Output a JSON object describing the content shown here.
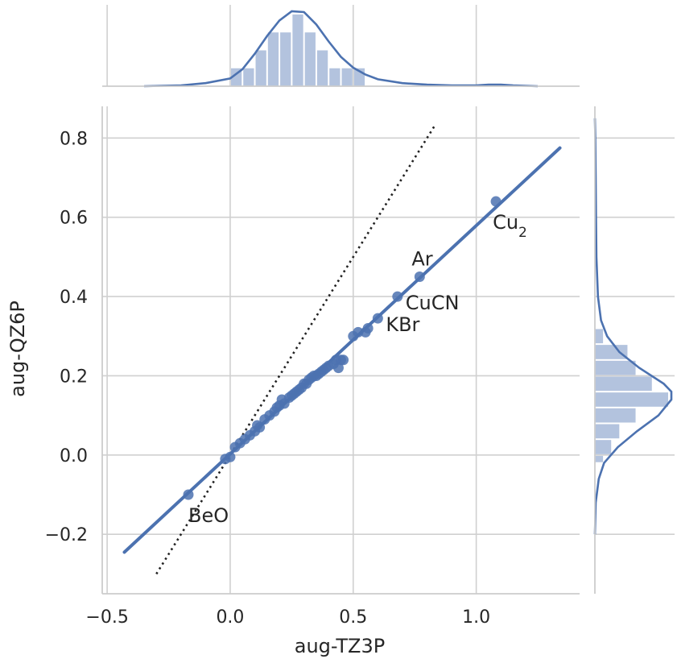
{
  "chart_data": {
    "type": "scatter",
    "title": "",
    "xlabel": "aug-TZ3P",
    "ylabel": "aug-QZ6P",
    "xlim": [
      -0.52,
      1.42
    ],
    "ylim": [
      -0.35,
      0.88
    ],
    "xticks": [
      -0.5,
      0.0,
      0.5,
      1.0
    ],
    "xtick_labels": [
      "−0.5",
      "0.0",
      "0.5",
      "1.0"
    ],
    "yticks": [
      -0.2,
      0.0,
      0.2,
      0.4,
      0.6,
      0.8
    ],
    "ytick_labels": [
      "−0.2",
      "0.0",
      "0.2",
      "0.4",
      "0.6",
      "0.8"
    ],
    "grid": true,
    "color": "#4c72b0",
    "marginal_color": "#b3c3de",
    "points": [
      {
        "x": -0.17,
        "y": -0.1
      },
      {
        "x": -0.02,
        "y": -0.01
      },
      {
        "x": 0.0,
        "y": -0.005
      },
      {
        "x": 0.02,
        "y": 0.02
      },
      {
        "x": 0.04,
        "y": 0.03
      },
      {
        "x": 0.06,
        "y": 0.04
      },
      {
        "x": 0.08,
        "y": 0.05
      },
      {
        "x": 0.1,
        "y": 0.06
      },
      {
        "x": 0.12,
        "y": 0.07
      },
      {
        "x": 0.11,
        "y": 0.075
      },
      {
        "x": 0.14,
        "y": 0.09
      },
      {
        "x": 0.16,
        "y": 0.1
      },
      {
        "x": 0.18,
        "y": 0.11
      },
      {
        "x": 0.19,
        "y": 0.12
      },
      {
        "x": 0.2,
        "y": 0.125
      },
      {
        "x": 0.21,
        "y": 0.14
      },
      {
        "x": 0.22,
        "y": 0.13
      },
      {
        "x": 0.24,
        "y": 0.145
      },
      {
        "x": 0.25,
        "y": 0.15
      },
      {
        "x": 0.26,
        "y": 0.155
      },
      {
        "x": 0.27,
        "y": 0.16
      },
      {
        "x": 0.28,
        "y": 0.165
      },
      {
        "x": 0.29,
        "y": 0.17
      },
      {
        "x": 0.3,
        "y": 0.18
      },
      {
        "x": 0.31,
        "y": 0.18
      },
      {
        "x": 0.32,
        "y": 0.19
      },
      {
        "x": 0.33,
        "y": 0.195
      },
      {
        "x": 0.34,
        "y": 0.2
      },
      {
        "x": 0.35,
        "y": 0.2
      },
      {
        "x": 0.36,
        "y": 0.205
      },
      {
        "x": 0.37,
        "y": 0.21
      },
      {
        "x": 0.38,
        "y": 0.215
      },
      {
        "x": 0.39,
        "y": 0.22
      },
      {
        "x": 0.4,
        "y": 0.225
      },
      {
        "x": 0.42,
        "y": 0.23
      },
      {
        "x": 0.43,
        "y": 0.24
      },
      {
        "x": 0.45,
        "y": 0.24
      },
      {
        "x": 0.44,
        "y": 0.22
      },
      {
        "x": 0.46,
        "y": 0.24
      },
      {
        "x": 0.5,
        "y": 0.3
      },
      {
        "x": 0.52,
        "y": 0.31
      },
      {
        "x": 0.55,
        "y": 0.31
      },
      {
        "x": 0.56,
        "y": 0.32
      },
      {
        "x": 0.6,
        "y": 0.345
      },
      {
        "x": 0.68,
        "y": 0.4
      },
      {
        "x": 0.77,
        "y": 0.45
      },
      {
        "x": 1.08,
        "y": 0.64
      }
    ],
    "regression": {
      "x": [
        -0.43,
        1.34
      ],
      "y": [
        -0.245,
        0.775
      ]
    },
    "identity_line": {
      "x": [
        -0.3,
        0.83
      ],
      "y": [
        -0.3,
        0.83
      ]
    },
    "annotations": [
      {
        "text": "BeO",
        "x": -0.17,
        "y": -0.1
      },
      {
        "text": "Cu",
        "sub": "2",
        "x": 1.08,
        "y": 0.64
      },
      {
        "text": "Ar",
        "x": 0.77,
        "y": 0.45
      },
      {
        "text": "CuCN",
        "x": 0.68,
        "y": 0.4
      },
      {
        "text": "KBr",
        "x": 0.6,
        "y": 0.345
      }
    ],
    "x_marginal": {
      "bins": [
        -0.5,
        -0.4,
        -0.3,
        -0.2,
        -0.1,
        0.0,
        0.05,
        0.1,
        0.15,
        0.2,
        0.25,
        0.3,
        0.35,
        0.4,
        0.45,
        0.5,
        0.55,
        0.6,
        0.7,
        0.8,
        0.9,
        1.0,
        1.1,
        1.2
      ],
      "counts": [
        0,
        0,
        0,
        0,
        0,
        1,
        1,
        2,
        3,
        3,
        4,
        3,
        2,
        1,
        1,
        1,
        0,
        0,
        0,
        0,
        0,
        0,
        0
      ],
      "kde_x": [
        -0.35,
        -0.2,
        -0.1,
        0.0,
        0.05,
        0.1,
        0.15,
        0.2,
        0.25,
        0.3,
        0.35,
        0.4,
        0.45,
        0.5,
        0.55,
        0.6,
        0.7,
        0.8,
        0.9,
        1.0,
        1.05,
        1.1,
        1.15,
        1.25
      ],
      "kde_y": [
        0.0,
        0.01,
        0.04,
        0.1,
        0.22,
        0.42,
        0.65,
        0.85,
        0.97,
        0.96,
        0.8,
        0.58,
        0.38,
        0.24,
        0.15,
        0.09,
        0.04,
        0.02,
        0.01,
        0.01,
        0.02,
        0.02,
        0.01,
        0.0
      ]
    },
    "y_marginal": {
      "bins": [
        -0.02,
        0.0,
        0.04,
        0.08,
        0.12,
        0.16,
        0.2,
        0.24,
        0.28,
        0.32,
        0.36
      ],
      "counts": [
        1,
        2,
        3,
        5,
        9,
        7,
        5,
        4,
        1,
        0
      ],
      "kde_y": [
        -0.2,
        -0.12,
        -0.06,
        -0.02,
        0.02,
        0.06,
        0.1,
        0.14,
        0.16,
        0.18,
        0.22,
        0.26,
        0.3,
        0.34,
        0.4,
        0.5,
        0.6,
        0.7,
        0.8,
        0.85
      ],
      "kde_x": [
        0.0,
        0.01,
        0.05,
        0.12,
        0.3,
        0.55,
        0.83,
        1.0,
        1.0,
        0.9,
        0.58,
        0.32,
        0.16,
        0.08,
        0.04,
        0.02,
        0.015,
        0.01,
        0.005,
        0.0
      ]
    }
  }
}
